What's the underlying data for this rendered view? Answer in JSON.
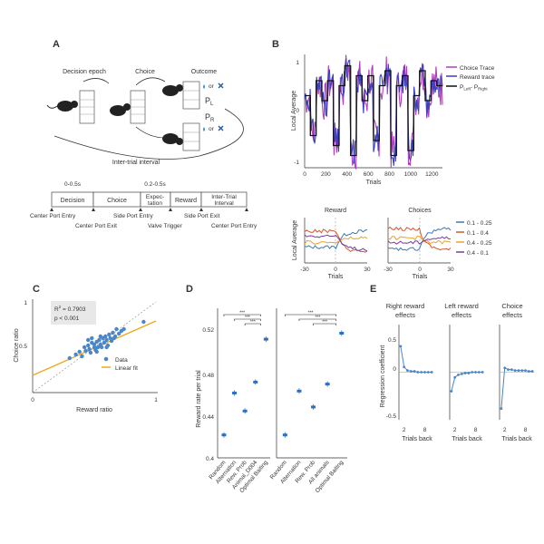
{
  "panels": {
    "A": "A",
    "B": "B",
    "C": "C",
    "D": "D",
    "E": "E"
  },
  "panelA": {
    "stage_labels": [
      "Decision epoch",
      "Choice",
      "Outcome"
    ],
    "outcome_symbol": "or",
    "prob_left": "P",
    "prob_left_sub": "L",
    "prob_right": "P",
    "prob_right_sub": "R",
    "iti_label": "Inter-trial interval",
    "timeline": {
      "durations": [
        "0-0.5s",
        "0.2-0.5s"
      ],
      "segments": [
        "Decision",
        "Choice",
        "Expec-",
        "tation",
        "Reward",
        "Inter-Trial",
        "Interval"
      ],
      "events_top": [
        "Center Port Entry",
        "Side Port Entry",
        "Side Port Exit"
      ],
      "events_bottom": [
        "Center Port Exit",
        "Valve Trigger",
        "Center Port Entry"
      ]
    }
  },
  "panelB": {
    "legend": [
      "Choice Trace",
      "Reward trace",
      "P",
      "Left",
      "- P",
      "Right"
    ],
    "ylabel": "Local Average",
    "xlabel": "Trials",
    "xticks": [
      "0",
      "200",
      "400",
      "600",
      "800",
      "1000",
      "1200"
    ],
    "yticks": [
      "1",
      "0",
      "-1"
    ],
    "sub_titles": [
      "Reward",
      "Choices"
    ],
    "sub_ylabel": "Local Average",
    "sub_xlabel": "Trials",
    "sub_xticks": [
      "-30",
      "0",
      "30"
    ],
    "sub_legend": [
      "0.1 - 0.25",
      "0.1 - 0.4",
      "0.4 - 0.25",
      "0.4 - 0.1"
    ],
    "colors": {
      "choice": "#b03fbf",
      "reward": "#3a3fbf",
      "prob": "#111111",
      "c1": "#3b78b8",
      "c2": "#d4552b",
      "c3": "#e8a32a",
      "c4": "#7b3c9b"
    }
  },
  "panelC": {
    "chart_data": {
      "type": "scatter",
      "xlabel": "Reward ratio",
      "ylabel": "Choice ratio",
      "xlim": [
        0,
        1
      ],
      "ylim": [
        0,
        1
      ],
      "stats": [
        "R",
        "2",
        " = 0.7903",
        "p < 0.001"
      ],
      "legend": [
        "Data",
        "Linear fit"
      ],
      "xticks": [
        "0",
        "1"
      ],
      "yticks": [
        "0",
        "0.5",
        "1"
      ],
      "points": [
        [
          0.3,
          0.38
        ],
        [
          0.35,
          0.42
        ],
        [
          0.38,
          0.45
        ],
        [
          0.4,
          0.4
        ],
        [
          0.42,
          0.5
        ],
        [
          0.43,
          0.46
        ],
        [
          0.45,
          0.52
        ],
        [
          0.46,
          0.48
        ],
        [
          0.47,
          0.44
        ],
        [
          0.48,
          0.55
        ],
        [
          0.5,
          0.5
        ],
        [
          0.5,
          0.53
        ],
        [
          0.51,
          0.47
        ],
        [
          0.52,
          0.56
        ],
        [
          0.53,
          0.5
        ],
        [
          0.54,
          0.58
        ],
        [
          0.55,
          0.53
        ],
        [
          0.56,
          0.5
        ],
        [
          0.57,
          0.6
        ],
        [
          0.58,
          0.55
        ],
        [
          0.59,
          0.62
        ],
        [
          0.6,
          0.58
        ],
        [
          0.61,
          0.52
        ],
        [
          0.62,
          0.64
        ],
        [
          0.63,
          0.6
        ],
        [
          0.64,
          0.57
        ],
        [
          0.65,
          0.66
        ],
        [
          0.67,
          0.62
        ],
        [
          0.68,
          0.7
        ],
        [
          0.7,
          0.65
        ],
        [
          0.72,
          0.68
        ],
        [
          0.74,
          0.7
        ],
        [
          0.45,
          0.58
        ],
        [
          0.55,
          0.62
        ],
        [
          0.6,
          0.5
        ],
        [
          0.48,
          0.6
        ],
        [
          0.52,
          0.45
        ],
        [
          0.66,
          0.6
        ],
        [
          0.9,
          0.78
        ]
      ],
      "fit": {
        "slope": 0.6,
        "intercept": 0.19
      },
      "colors": {
        "points": "#4a86c8",
        "fit": "#f0a818",
        "diag": "#999999"
      }
    }
  },
  "panelD": {
    "chart_data": [
      {
        "type": "scatter",
        "ylabel": "Reward rate per trial",
        "ylim": [
          0.4,
          0.55
        ],
        "yticks": [
          "0.52",
          "0.48",
          "0.44",
          "0.4"
        ],
        "categories": [
          "Random",
          "Alternation",
          "Rew. Prob",
          "Animal_D004",
          "Optimal Baiting"
        ],
        "values": [
          0.423,
          0.465,
          0.447,
          0.476,
          0.519
        ],
        "sig": [
          "***",
          "***",
          "***"
        ]
      },
      {
        "type": "scatter",
        "ylim": [
          0.4,
          0.55
        ],
        "categories": [
          "Random",
          "Alternation",
          "Rew. Prob",
          "All animals",
          "Optimal Baiting"
        ],
        "values": [
          0.423,
          0.467,
          0.451,
          0.474,
          0.525
        ],
        "sig": [
          "***",
          "***",
          "***"
        ]
      }
    ]
  },
  "panelE": {
    "titles": [
      [
        "Right reward",
        "effects"
      ],
      [
        "Left reward",
        "effects"
      ],
      [
        "Choice",
        "effects"
      ]
    ],
    "ylabel": "Regression coefficient",
    "xlabel": "Trials back",
    "xticks": [
      "2",
      "8"
    ],
    "yticks": [
      "0.5",
      "0",
      "-0.5"
    ],
    "chart_data": [
      {
        "type": "line",
        "x": [
          1,
          2,
          3,
          4,
          5,
          6,
          7,
          8,
          9,
          10
        ],
        "values": [
          0.3,
          0.06,
          0.02,
          0.01,
          0.01,
          0.0,
          0.0,
          0.0,
          0.0,
          0.0
        ]
      },
      {
        "type": "line",
        "x": [
          1,
          2,
          3,
          4,
          5,
          6,
          7,
          8,
          9,
          10
        ],
        "values": [
          -0.22,
          -0.06,
          -0.03,
          -0.02,
          -0.01,
          -0.01,
          0.0,
          0.0,
          0.0,
          0.0
        ]
      },
      {
        "type": "line",
        "x": [
          1,
          2,
          3,
          4,
          5,
          6,
          7,
          8,
          9,
          10
        ],
        "values": [
          -0.42,
          0.05,
          0.03,
          0.03,
          0.02,
          0.02,
          0.02,
          0.02,
          0.01,
          0.01
        ]
      }
    ]
  }
}
